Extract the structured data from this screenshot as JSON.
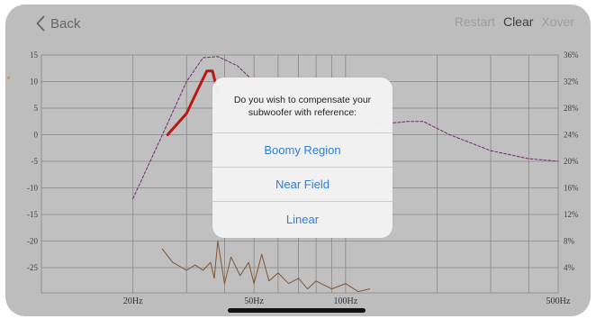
{
  "nav": {
    "back_label": "Back",
    "actions": [
      "Restart",
      "Clear",
      "Xover"
    ]
  },
  "chart_data": {
    "type": "line",
    "left_axis": {
      "ticks": [
        15,
        10,
        5,
        0,
        -5,
        -10,
        -15,
        -20,
        -25
      ]
    },
    "right_axis": {
      "ticks": [
        "36%",
        "32%",
        "28%",
        "24%",
        "20%",
        "16%",
        "12%",
        "8%",
        "4%"
      ]
    },
    "x_axis": {
      "scale": "log",
      "ticks": [
        "20Hz",
        "50Hz",
        "100Hz",
        "500Hz"
      ]
    },
    "grid": true,
    "series": [
      {
        "style": "dashed",
        "color": "#7b2a78",
        "x": [
          20,
          25,
          30,
          34,
          38,
          44,
          50,
          60,
          80,
          100,
          130,
          160,
          180,
          220,
          300,
          400,
          500
        ],
        "y": [
          -12,
          0,
          10,
          14.5,
          14.7,
          13,
          10,
          7,
          5,
          3,
          2,
          2.5,
          2.5,
          0,
          -3,
          -4.5,
          -5
        ]
      },
      {
        "style": "solid",
        "color": "#c41b16",
        "x": [
          26,
          30,
          33,
          35,
          36.5,
          38
        ],
        "y": [
          0,
          4,
          9,
          12,
          12,
          8
        ]
      },
      {
        "style": "solid",
        "color": "#8a5a33",
        "x": [
          25,
          27,
          30,
          32,
          34,
          36,
          37,
          38,
          40,
          42,
          45,
          48,
          50,
          53,
          56,
          60,
          65,
          70,
          75,
          80,
          90,
          100,
          110,
          120
        ],
        "y": [
          -21.5,
          -24,
          -25.5,
          -24.5,
          -25.5,
          -24,
          -27,
          -20,
          -28,
          -23,
          -26.5,
          -24,
          -28,
          -22.5,
          -27.5,
          -26,
          -28,
          -27,
          -29,
          -27.5,
          -29,
          -28,
          -29.5,
          -29
        ]
      }
    ]
  },
  "dialog": {
    "message": "Do you wish to compensate your subwoofer with reference:",
    "options": [
      "Boomy Region",
      "Near Field",
      "Linear"
    ]
  }
}
